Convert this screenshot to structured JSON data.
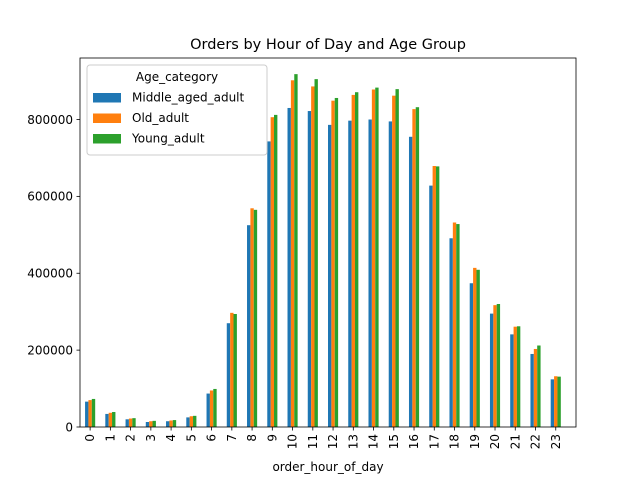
{
  "chart_data": {
    "type": "bar",
    "title": "Orders by Hour of Day and Age Group",
    "xlabel": "order_hour_of_day",
    "ylabel": "",
    "ylim": [
      0,
      960000
    ],
    "yticks": [
      0,
      200000,
      400000,
      600000,
      800000
    ],
    "grid": false,
    "legend": {
      "title": "Age_category",
      "placement": "upper-left"
    },
    "categories": [
      "0",
      "1",
      "2",
      "3",
      "4",
      "5",
      "6",
      "7",
      "8",
      "9",
      "10",
      "11",
      "12",
      "13",
      "14",
      "15",
      "16",
      "17",
      "18",
      "19",
      "20",
      "21",
      "22",
      "23"
    ],
    "series": [
      {
        "name": "Middle_aged_adult",
        "color": "#1f77b4",
        "values": [
          66000,
          34000,
          20000,
          13000,
          15000,
          25000,
          87000,
          270000,
          525000,
          743000,
          830000,
          822000,
          786000,
          797000,
          800000,
          795000,
          755000,
          628000,
          491000,
          374000,
          295000,
          241000,
          190000,
          124000
        ]
      },
      {
        "name": "Old_adult",
        "color": "#ff7f0e",
        "values": [
          70000,
          37000,
          22000,
          15000,
          17000,
          28000,
          95000,
          297000,
          569000,
          806000,
          902000,
          886000,
          849000,
          864000,
          878000,
          862000,
          827000,
          679000,
          532000,
          414000,
          317000,
          261000,
          203000,
          132000
        ]
      },
      {
        "name": "Young_adult",
        "color": "#2ca02c",
        "values": [
          73000,
          39000,
          23000,
          16000,
          18000,
          29000,
          99000,
          294000,
          565000,
          812000,
          918000,
          905000,
          856000,
          871000,
          883000,
          879000,
          832000,
          678000,
          528000,
          409000,
          320000,
          262000,
          212000,
          131000
        ]
      }
    ]
  }
}
